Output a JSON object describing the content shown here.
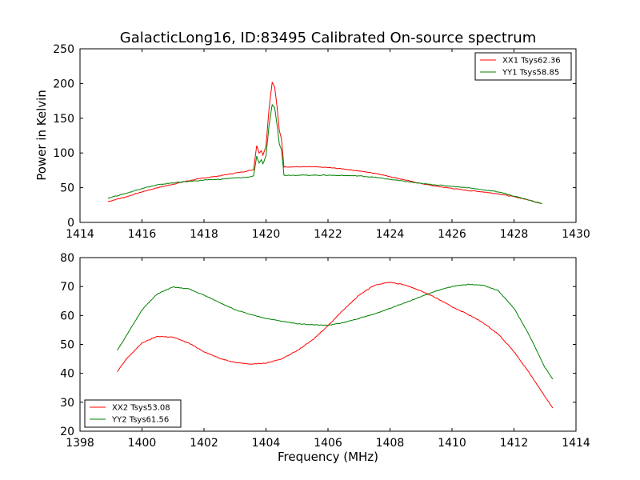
{
  "chart_data": [
    {
      "type": "line",
      "title": "GalacticLong16, ID:83495 Calibrated On-source spectrum",
      "xlabel": "",
      "ylabel": "Power in Kelvin",
      "xlim": [
        1414,
        1430
      ],
      "ylim": [
        0,
        250
      ],
      "xticks": [
        1414,
        1416,
        1418,
        1420,
        1422,
        1424,
        1426,
        1428,
        1430
      ],
      "yticks": [
        0,
        50,
        100,
        150,
        200,
        250
      ],
      "legend": "top-right",
      "grid": false,
      "series": [
        {
          "name": "XX1 Tsys62.36",
          "color": "#ff0000",
          "points": [
            [
              1414.9,
              30
            ],
            [
              1415.5,
              37
            ],
            [
              1416,
              44
            ],
            [
              1416.5,
              50
            ],
            [
              1417,
              55
            ],
            [
              1417.5,
              60
            ],
            [
              1418,
              64
            ],
            [
              1418.5,
              67
            ],
            [
              1419,
              71
            ],
            [
              1419.4,
              74
            ],
            [
              1419.6,
              76
            ],
            [
              1419.7,
              111
            ],
            [
              1419.78,
              100
            ],
            [
              1419.85,
              103
            ],
            [
              1419.9,
              97
            ],
            [
              1420.0,
              110
            ],
            [
              1420.1,
              165
            ],
            [
              1420.2,
              202
            ],
            [
              1420.28,
              195
            ],
            [
              1420.36,
              165
            ],
            [
              1420.43,
              132
            ],
            [
              1420.5,
              120
            ],
            [
              1420.58,
              80
            ],
            [
              1421,
              80
            ],
            [
              1421.5,
              80
            ],
            [
              1422,
              79
            ],
            [
              1422.5,
              77
            ],
            [
              1423,
              74
            ],
            [
              1423.5,
              71
            ],
            [
              1424,
              66
            ],
            [
              1424.5,
              61
            ],
            [
              1425,
              56
            ],
            [
              1425.5,
              52
            ],
            [
              1426,
              49
            ],
            [
              1426.5,
              46
            ],
            [
              1427,
              44
            ],
            [
              1427.5,
              41
            ],
            [
              1428,
              37
            ],
            [
              1428.5,
              32
            ],
            [
              1428.9,
              27
            ]
          ]
        },
        {
          "name": "YY1 Tsys58.85",
          "color": "#008000",
          "points": [
            [
              1414.9,
              35
            ],
            [
              1415.5,
              42
            ],
            [
              1416,
              49
            ],
            [
              1416.5,
              54
            ],
            [
              1417,
              57
            ],
            [
              1417.5,
              59
            ],
            [
              1418,
              61
            ],
            [
              1418.5,
              62
            ],
            [
              1419,
              64
            ],
            [
              1419.4,
              65
            ],
            [
              1419.6,
              67
            ],
            [
              1419.7,
              95
            ],
            [
              1419.78,
              85
            ],
            [
              1419.85,
              90
            ],
            [
              1419.9,
              84
            ],
            [
              1420.0,
              96
            ],
            [
              1420.1,
              140
            ],
            [
              1420.2,
              170
            ],
            [
              1420.28,
              165
            ],
            [
              1420.36,
              140
            ],
            [
              1420.43,
              113
            ],
            [
              1420.5,
              105
            ],
            [
              1420.58,
              68
            ],
            [
              1421,
              68
            ],
            [
              1422,
              68
            ],
            [
              1423,
              67
            ],
            [
              1423.5,
              65
            ],
            [
              1424,
              62
            ],
            [
              1424.5,
              59
            ],
            [
              1425,
              56
            ],
            [
              1425.5,
              54
            ],
            [
              1426,
              52
            ],
            [
              1426.5,
              50
            ],
            [
              1427,
              47
            ],
            [
              1427.5,
              44
            ],
            [
              1428,
              38
            ],
            [
              1428.5,
              32
            ],
            [
              1428.9,
              27
            ]
          ]
        }
      ]
    },
    {
      "type": "line",
      "title": "",
      "xlabel": "Frequency (MHz)",
      "ylabel": "",
      "xlim": [
        1398,
        1414
      ],
      "ylim": [
        20,
        80
      ],
      "xticks": [
        1398,
        1400,
        1402,
        1404,
        1406,
        1408,
        1410,
        1412,
        1414
      ],
      "yticks": [
        20,
        30,
        40,
        50,
        60,
        70,
        80
      ],
      "legend": "bottom-left",
      "grid": false,
      "series": [
        {
          "name": "XX2 Tsys53.08",
          "color": "#ff0000",
          "points": [
            [
              1399.2,
              40.5
            ],
            [
              1399.5,
              45
            ],
            [
              1400,
              50.5
            ],
            [
              1400.5,
              52.8
            ],
            [
              1401,
              52.5
            ],
            [
              1401.5,
              50.5
            ],
            [
              1402,
              47.5
            ],
            [
              1402.5,
              45.2
            ],
            [
              1403,
              43.8
            ],
            [
              1403.5,
              43.2
            ],
            [
              1404,
              43.5
            ],
            [
              1404.5,
              45
            ],
            [
              1405,
              47.8
            ],
            [
              1405.5,
              51.5
            ],
            [
              1406,
              56.5
            ],
            [
              1406.5,
              62
            ],
            [
              1407,
              67
            ],
            [
              1407.5,
              70.5
            ],
            [
              1408,
              71.5
            ],
            [
              1408.5,
              70.5
            ],
            [
              1409,
              68.5
            ],
            [
              1409.5,
              66
            ],
            [
              1410,
              63
            ],
            [
              1410.5,
              60.5
            ],
            [
              1411,
              57.5
            ],
            [
              1411.5,
              53.5
            ],
            [
              1412,
              47.5
            ],
            [
              1412.5,
              40
            ],
            [
              1413,
              32
            ],
            [
              1413.25,
              28
            ]
          ]
        },
        {
          "name": "YY2 Tsys61.56",
          "color": "#008000",
          "points": [
            [
              1399.2,
              48
            ],
            [
              1399.5,
              53
            ],
            [
              1400,
              62
            ],
            [
              1400.5,
              67.5
            ],
            [
              1401,
              69.8
            ],
            [
              1401.5,
              69.2
            ],
            [
              1402,
              67
            ],
            [
              1402.5,
              64.5
            ],
            [
              1403,
              62
            ],
            [
              1403.5,
              60.3
            ],
            [
              1404,
              59
            ],
            [
              1404.5,
              58
            ],
            [
              1405,
              57.2
            ],
            [
              1405.5,
              56.8
            ],
            [
              1406,
              56.6
            ],
            [
              1406.5,
              57.5
            ],
            [
              1407,
              59
            ],
            [
              1407.5,
              60.5
            ],
            [
              1408,
              62.5
            ],
            [
              1408.5,
              64.5
            ],
            [
              1409,
              66.5
            ],
            [
              1409.5,
              68.5
            ],
            [
              1410,
              70
            ],
            [
              1410.5,
              70.7
            ],
            [
              1411,
              70.5
            ],
            [
              1411.5,
              68.5
            ],
            [
              1412,
              62.5
            ],
            [
              1412.5,
              53
            ],
            [
              1413,
              42
            ],
            [
              1413.25,
              38
            ]
          ]
        }
      ]
    }
  ]
}
